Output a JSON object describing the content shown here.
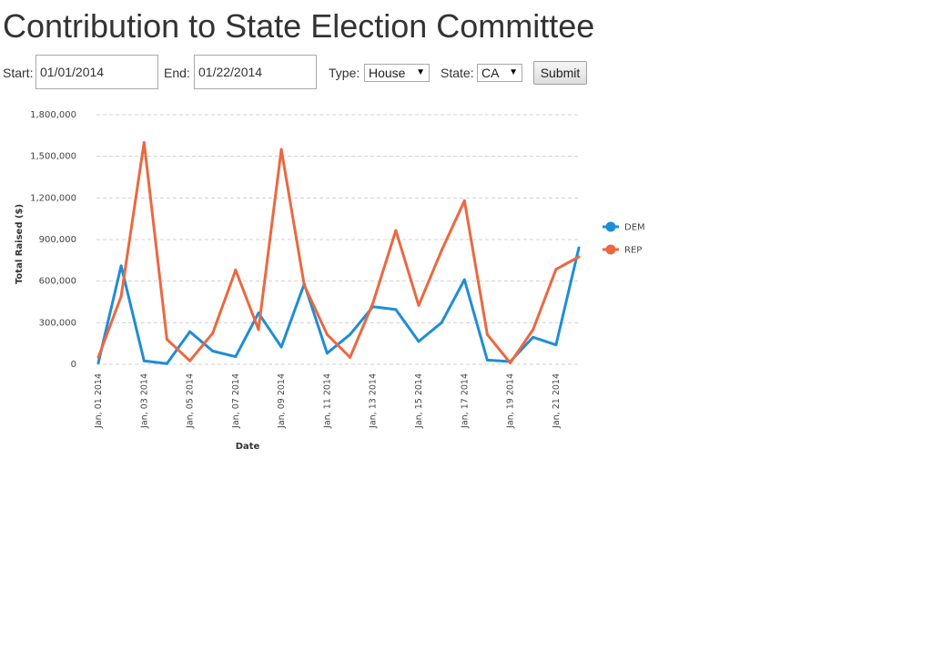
{
  "header": {
    "title": "Contribution to State Election Committee"
  },
  "form": {
    "start_label": "Start:",
    "start_value": "01/01/2014",
    "end_label": "End:",
    "end_value": "01/22/2014",
    "type_label": "Type:",
    "type_value": "House",
    "state_label": "State:",
    "state_value": "CA",
    "submit_label": "Submit"
  },
  "chart_data": {
    "type": "line",
    "xlabel": "Date",
    "ylabel": "Total Raised ($)",
    "ylim": [
      0,
      1800000
    ],
    "yticks": [
      0,
      300000,
      600000,
      900000,
      1200000,
      1500000,
      1800000
    ],
    "ytick_labels": [
      "0",
      "300,000",
      "600,000",
      "900,000",
      "1,200,000",
      "1,500,000",
      "1,800,000"
    ],
    "x": [
      "2014-01-01",
      "2014-01-02",
      "2014-01-03",
      "2014-01-04",
      "2014-01-05",
      "2014-01-06",
      "2014-01-07",
      "2014-01-08",
      "2014-01-09",
      "2014-01-10",
      "2014-01-11",
      "2014-01-12",
      "2014-01-13",
      "2014-01-14",
      "2014-01-15",
      "2014-01-16",
      "2014-01-17",
      "2014-01-18",
      "2014-01-19",
      "2014-01-20",
      "2014-01-21",
      "2014-01-22"
    ],
    "xtick_labels": [
      "Jan, 01 2014",
      "Jan, 03 2014",
      "Jan, 05 2014",
      "Jan, 07 2014",
      "Jan, 09 2014",
      "Jan, 11 2014",
      "Jan, 13 2014",
      "Jan, 15 2014",
      "Jan, 17 2014",
      "Jan, 19 2014",
      "Jan, 21 2014"
    ],
    "grid": true,
    "legend_position": "right",
    "series": [
      {
        "name": "DEM",
        "color": "#1f8dd6",
        "values": [
          10000,
          710000,
          25000,
          5000,
          235000,
          95000,
          55000,
          370000,
          125000,
          580000,
          80000,
          215000,
          415000,
          395000,
          165000,
          300000,
          610000,
          30000,
          20000,
          195000,
          140000,
          840000
        ]
      },
      {
        "name": "REP",
        "color": "#eb6841",
        "values": [
          50000,
          490000,
          1600000,
          180000,
          25000,
          225000,
          680000,
          250000,
          1550000,
          570000,
          215000,
          50000,
          440000,
          965000,
          425000,
          820000,
          1180000,
          215000,
          10000,
          250000,
          685000,
          775000
        ]
      }
    ]
  }
}
